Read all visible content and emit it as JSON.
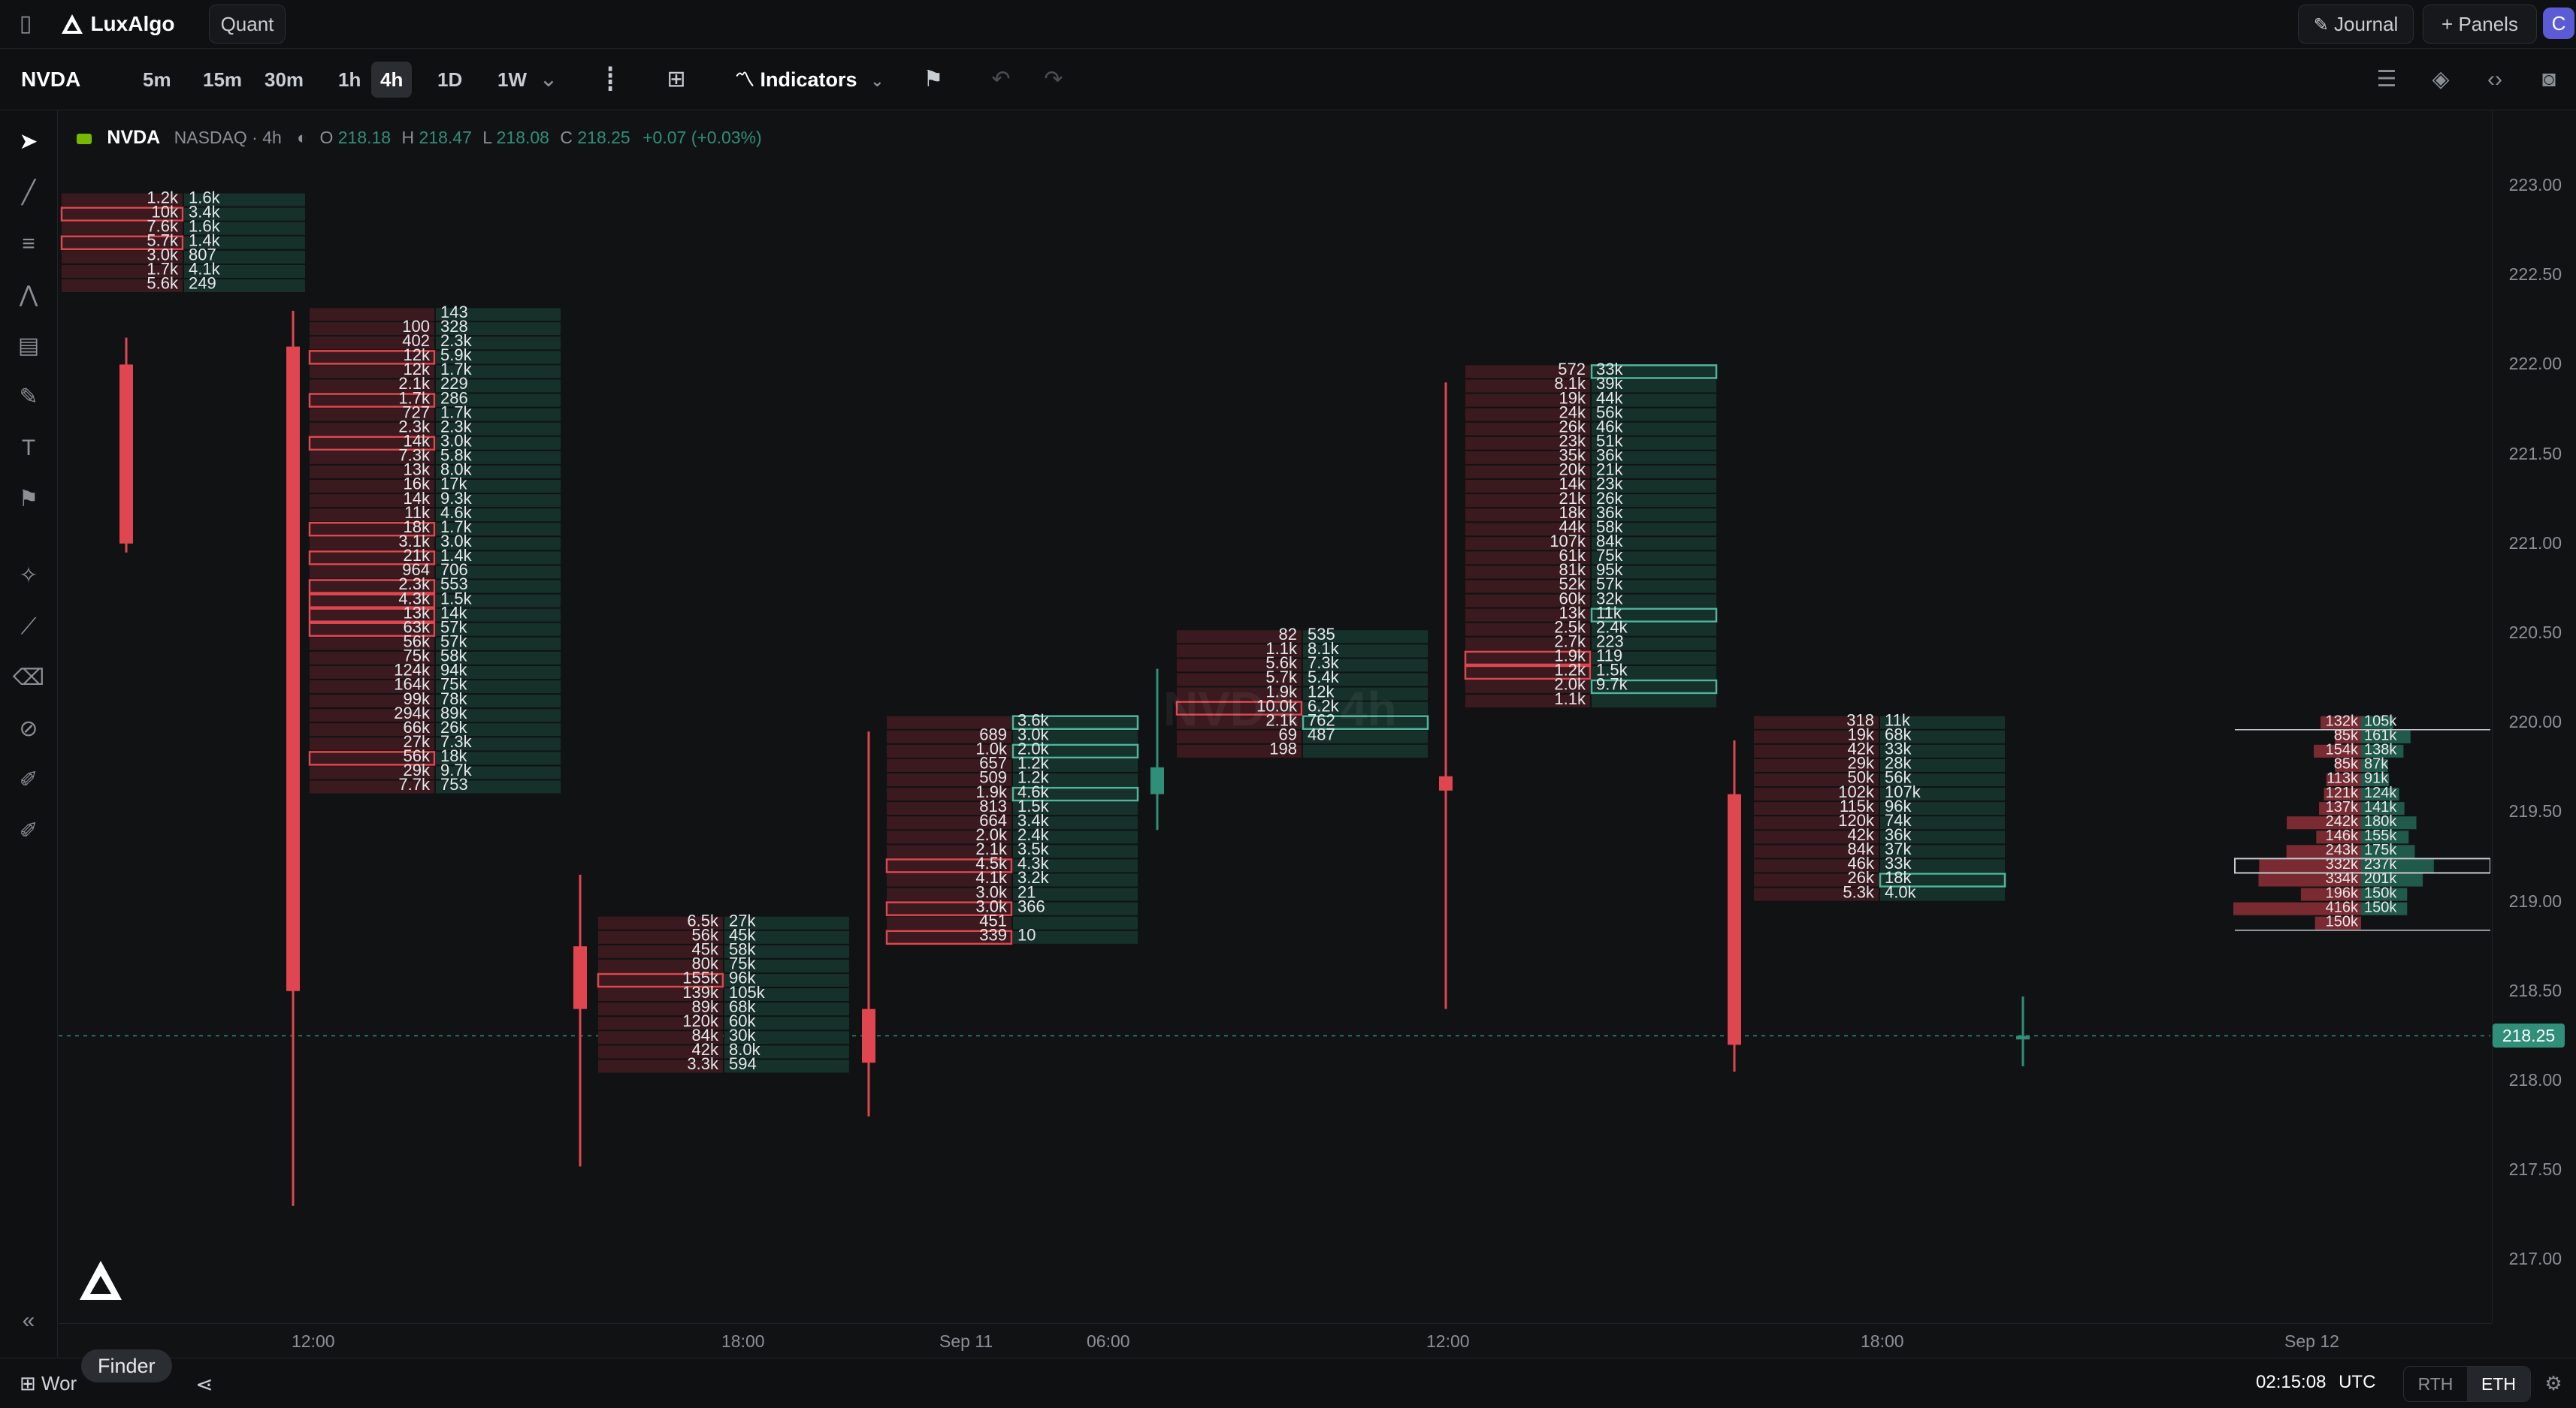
{
  "app": {
    "brand": "LuxAlgo",
    "tab": "Quant"
  },
  "top_right": {
    "journal": "Journal",
    "panels": "Panels",
    "avatar": "C"
  },
  "toolbar": {
    "symbol": "NVDA",
    "timeframes": [
      "5m",
      "15m",
      "30m",
      "1h",
      "4h",
      "1D",
      "1W"
    ],
    "active_timeframe": "4h",
    "indicators": "Indicators"
  },
  "legend": {
    "symbol": "NVDA",
    "exchange": "NASDAQ · 4h",
    "o_label": "O",
    "o": "218.18",
    "h_label": "H",
    "h": "218.47",
    "l_label": "L",
    "l": "218.08",
    "c_label": "C",
    "c": "218.25",
    "change": "+0.07 (+0.03%)",
    "watermark": "NVDA · 4h"
  },
  "price_axis": {
    "labels": [
      "223.00",
      "222.50",
      "222.00",
      "221.50",
      "221.00",
      "220.50",
      "220.00",
      "219.50",
      "219.00",
      "218.50",
      "218.00",
      "217.50",
      "217.00"
    ],
    "current_price": "218.25"
  },
  "time_axis": {
    "labels": [
      "12:00",
      "18:00",
      "Sep 11",
      "06:00",
      "12:00",
      "18:00",
      "Sep 12"
    ]
  },
  "bottom_bar": {
    "workspace": "Wor",
    "finder_tooltip": "Finder",
    "clock": "02:15:08",
    "timezone": "UTC",
    "rth": "RTH",
    "eth": "ETH"
  },
  "colors": {
    "bg": "#111214",
    "up": "#2f8f79",
    "down": "#e0464f",
    "bid_cell": "#3a1a1e",
    "ask_cell": "#16302a",
    "accent": "#5b5bd6"
  },
  "chart_data": {
    "type": "footprint",
    "tick_size": 0.08,
    "price_range": [
      216.85,
      223.1
    ],
    "candles": [
      {
        "time": "08:00",
        "open": 222.0,
        "high": 222.15,
        "low": 220.95,
        "close": 221.0,
        "cells": [
          [
            "1.2k",
            "1.6k"
          ],
          [
            "10k",
            "3.4k"
          ],
          [
            "7.6k",
            "1.6k"
          ],
          [
            "5.7k",
            "1.4k"
          ],
          [
            "3.0k",
            "807"
          ],
          [
            "1.7k",
            "4.1k"
          ],
          [
            "5.6k",
            "249"
          ]
        ],
        "top_price": 222.96,
        "hl_bid": [
          1,
          3
        ],
        "hl_ask": []
      },
      {
        "time": "12:00",
        "open": 222.1,
        "high": 222.3,
        "low": 217.3,
        "close": 218.5,
        "cells": [
          [
            "",
            "143"
          ],
          [
            "100",
            "328"
          ],
          [
            "402",
            "2.3k"
          ],
          [
            "12k",
            "5.9k"
          ],
          [
            "12k",
            "1.7k"
          ],
          [
            "2.1k",
            "229"
          ],
          [
            "1.7k",
            "286"
          ],
          [
            "727",
            "1.7k"
          ],
          [
            "2.3k",
            "2.3k"
          ],
          [
            "14k",
            "3.0k"
          ],
          [
            "7.3k",
            "5.8k"
          ],
          [
            "13k",
            "8.0k"
          ],
          [
            "16k",
            "17k"
          ],
          [
            "14k",
            "9.3k"
          ],
          [
            "11k",
            "4.6k"
          ],
          [
            "18k",
            "1.7k"
          ],
          [
            "3.1k",
            "3.0k"
          ],
          [
            "21k",
            "1.4k"
          ],
          [
            "964",
            "706"
          ],
          [
            "2.3k",
            "553"
          ],
          [
            "4.3k",
            "1.5k"
          ],
          [
            "13k",
            "14k"
          ],
          [
            "63k",
            "57k"
          ],
          [
            "56k",
            "57k"
          ],
          [
            "75k",
            "58k"
          ],
          [
            "124k",
            "94k"
          ],
          [
            "164k",
            "75k"
          ],
          [
            "99k",
            "78k"
          ],
          [
            "294k",
            "89k"
          ],
          [
            "66k",
            "26k"
          ],
          [
            "27k",
            "7.3k"
          ],
          [
            "56k",
            "18k"
          ],
          [
            "29k",
            "9.7k"
          ],
          [
            "7.7k",
            "753"
          ]
        ],
        "top_price": 222.32,
        "hl_bid": [
          3,
          6,
          9,
          15,
          17,
          19,
          20,
          21,
          22,
          31
        ],
        "hl_ask": []
      },
      {
        "time": "16:00",
        "open": 218.75,
        "high": 219.15,
        "low": 217.52,
        "close": 218.4,
        "cells": [
          [
            "6.5k",
            "27k"
          ],
          [
            "56k",
            "45k"
          ],
          [
            "45k",
            "58k"
          ],
          [
            "80k",
            "75k"
          ],
          [
            "155k",
            "96k"
          ],
          [
            "139k",
            "105k"
          ],
          [
            "89k",
            "68k"
          ],
          [
            "120k",
            "60k"
          ],
          [
            "84k",
            "30k"
          ],
          [
            "42k",
            "8.0k"
          ],
          [
            "3.3k",
            "594"
          ]
        ],
        "top_price": 218.92,
        "hl_bid": [
          4
        ],
        "hl_ask": []
      },
      {
        "time": "20:00",
        "open": 218.4,
        "high": 219.95,
        "low": 217.8,
        "close": 218.1,
        "cells": [
          [
            "",
            "3.6k"
          ],
          [
            "689",
            "3.0k"
          ],
          [
            "1.0k",
            "2.0k"
          ],
          [
            "657",
            "1.2k"
          ],
          [
            "509",
            "1.2k"
          ],
          [
            "1.9k",
            "4.6k"
          ],
          [
            "813",
            "1.5k"
          ],
          [
            "664",
            "3.4k"
          ],
          [
            "2.0k",
            "2.4k"
          ],
          [
            "2.1k",
            "3.5k"
          ],
          [
            "4.5k",
            "4.3k"
          ],
          [
            "4.1k",
            "3.2k"
          ],
          [
            "3.0k",
            "21"
          ],
          [
            "3.0k",
            "366"
          ],
          [
            "451",
            ""
          ],
          [
            "339",
            "10"
          ]
        ],
        "top_price": 220.04,
        "hl_bid": [
          10,
          13,
          15
        ],
        "hl_ask": [
          0,
          2,
          5
        ]
      },
      {
        "time": "Sep 11 04:00",
        "open": 219.6,
        "high": 220.3,
        "low": 219.4,
        "close": 219.75,
        "cells": [
          [
            "82",
            "535"
          ],
          [
            "1.1k",
            "8.1k"
          ],
          [
            "5.6k",
            "7.3k"
          ],
          [
            "5.7k",
            "5.4k"
          ],
          [
            "1.9k",
            "12k"
          ],
          [
            "10.0k",
            "6.2k"
          ],
          [
            "2.1k",
            "762"
          ],
          [
            "69",
            "487"
          ],
          [
            "198",
            ""
          ]
        ],
        "top_price": 220.52,
        "hl_bid": [
          5
        ],
        "hl_ask": [
          6
        ]
      },
      {
        "time": "Sep 11 08:00",
        "open": 219.7,
        "high": 221.9,
        "low": 218.4,
        "close": 219.62,
        "cells": [
          [
            "572",
            "33k"
          ],
          [
            "8.1k",
            "39k"
          ],
          [
            "19k",
            "44k"
          ],
          [
            "24k",
            "56k"
          ],
          [
            "26k",
            "46k"
          ],
          [
            "23k",
            "51k"
          ],
          [
            "35k",
            "36k"
          ],
          [
            "20k",
            "21k"
          ],
          [
            "14k",
            "23k"
          ],
          [
            "21k",
            "26k"
          ],
          [
            "18k",
            "36k"
          ],
          [
            "44k",
            "58k"
          ],
          [
            "107k",
            "84k"
          ],
          [
            "61k",
            "75k"
          ],
          [
            "81k",
            "95k"
          ],
          [
            "52k",
            "57k"
          ],
          [
            "60k",
            "32k"
          ],
          [
            "13k",
            "11k"
          ],
          [
            "2.5k",
            "2.4k"
          ],
          [
            "2.7k",
            "223"
          ],
          [
            "1.9k",
            "119"
          ],
          [
            "1.2k",
            "1.5k"
          ],
          [
            "2.0k",
            "9.7k"
          ],
          [
            "1.1k",
            ""
          ]
        ],
        "top_price": 222.0,
        "hl_bid": [
          20,
          21
        ],
        "hl_ask": [
          0,
          17,
          22
        ]
      },
      {
        "time": "Sep 11 16:00",
        "open": 219.6,
        "high": 219.9,
        "low": 218.05,
        "close": 218.2,
        "cells": [
          [
            "318",
            "11k"
          ],
          [
            "19k",
            "68k"
          ],
          [
            "42k",
            "33k"
          ],
          [
            "29k",
            "28k"
          ],
          [
            "50k",
            "56k"
          ],
          [
            "102k",
            "107k"
          ],
          [
            "115k",
            "96k"
          ],
          [
            "120k",
            "74k"
          ],
          [
            "42k",
            "36k"
          ],
          [
            "84k",
            "37k"
          ],
          [
            "46k",
            "33k"
          ],
          [
            "26k",
            "18k"
          ],
          [
            "5.3k",
            "4.0k"
          ]
        ],
        "top_price": 220.04,
        "hl_bid": [],
        "hl_ask": [
          11
        ]
      },
      {
        "time": "Sep 12 00:00",
        "open": 218.23,
        "high": 218.47,
        "low": 218.08,
        "close": 218.25,
        "cells": []
      }
    ],
    "volume_profile": [
      [
        "132k",
        "105k"
      ],
      [
        "85k",
        "161k"
      ],
      [
        "154k",
        "138k"
      ],
      [
        "85k",
        "87k"
      ],
      [
        "113k",
        "91k"
      ],
      [
        "121k",
        "124k"
      ],
      [
        "137k",
        "141k"
      ],
      [
        "242k",
        "180k"
      ],
      [
        "146k",
        "155k"
      ],
      [
        "243k",
        "175k"
      ],
      [
        "332k",
        "237k"
      ],
      [
        "334k",
        "201k"
      ],
      [
        "196k",
        "150k"
      ],
      [
        "416k",
        "150k"
      ],
      [
        "150k",
        ""
      ]
    ]
  }
}
